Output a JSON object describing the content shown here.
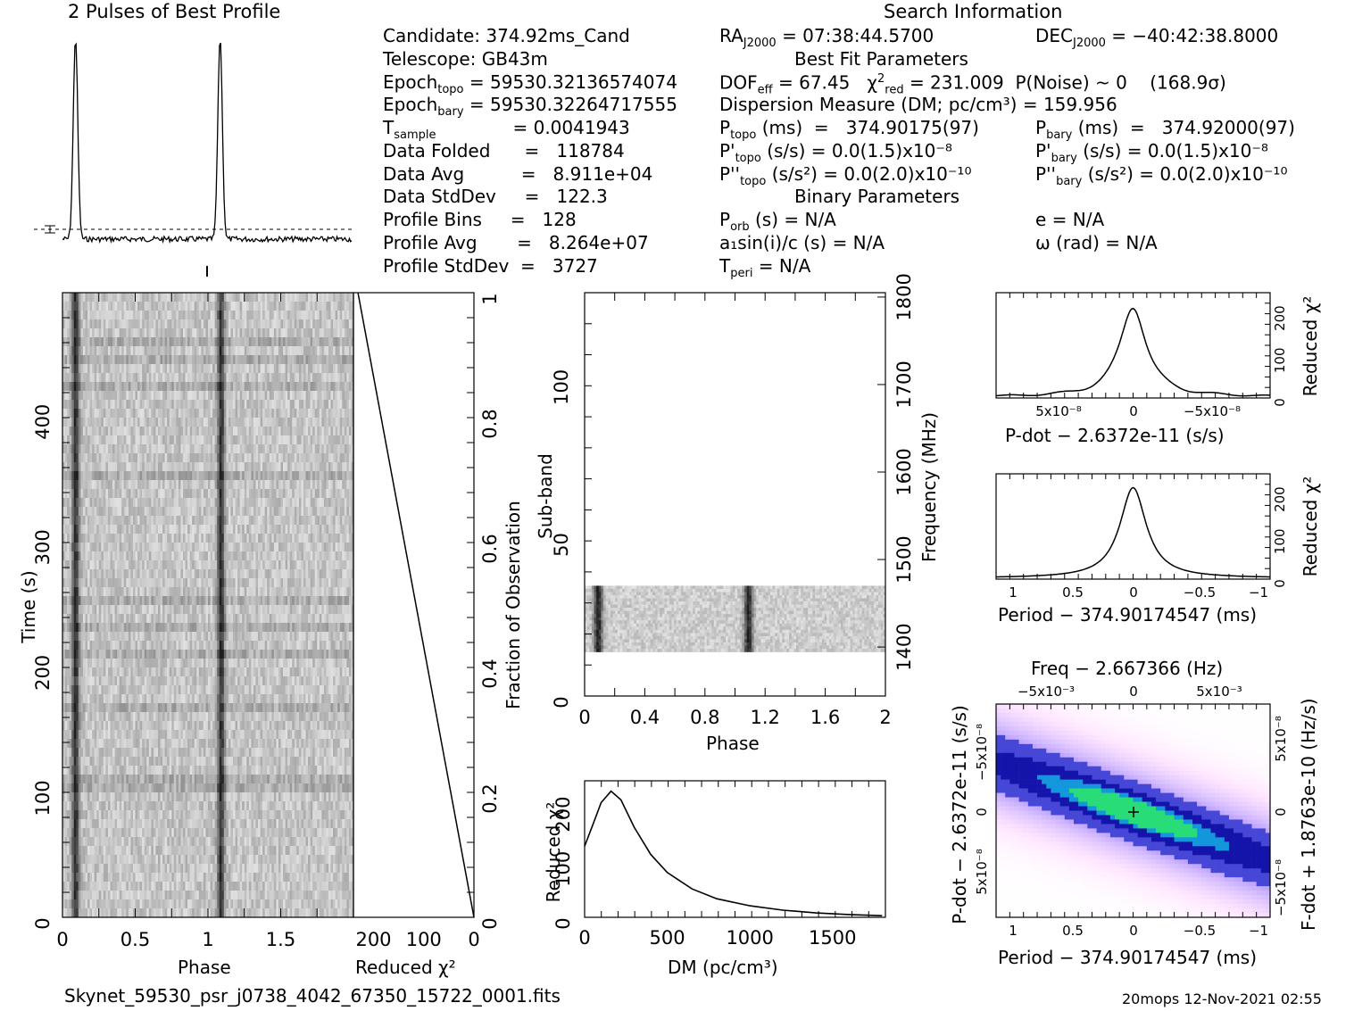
{
  "header": {
    "profile_title": "2 Pulses of Best Profile",
    "search_title": "Search Information",
    "footer_file": "Skynet_59530_psr_j0738_4042_67350_15722_0001.fits",
    "footer_stamp": "20mops 12-Nov-2021 02:55"
  },
  "info": {
    "candidate": "Candidate:  374.92ms_Cand",
    "telescope": "Telescope:  GB43m",
    "epoch_topo": "= 59530.32136574074",
    "epoch_bary": "= 59530.32264717555",
    "tsample": "=   0.0041943",
    "data_folded": "Data Folded      =   118784",
    "data_avg": "Data Avg          =   8.911e+04",
    "data_std": "Data StdDev     =   122.3",
    "profile_bins": "Profile Bins     =   128",
    "profile_avg": "Profile Avg       =   8.264e+07",
    "profile_std": "Profile StdDev  =   3727",
    "ra": "= 07:38:44.5700",
    "dec": "= −40:42:38.8000",
    "best_fit": "Best Fit Parameters",
    "dof": "= 67.45",
    "chi2": "= 231.009",
    "pnoise": "P(Noise) ~ 0    (168.9σ)",
    "dm": "Dispersion Measure (DM; pc/cm³) = 159.956",
    "ptopo": "(ms)  =   374.90175(97)",
    "pbary": "(ms)  =   374.92000(97)",
    "pdtopo": "(s/s) = 0.0(1.5)x10⁻⁸",
    "pdbary": "(s/s) = 0.0(1.5)x10⁻⁸",
    "pddtopo": "(s/s²) = 0.0(2.0)x10⁻¹⁰",
    "pddbary": "(s/s²) = 0.0(2.0)x10⁻¹⁰",
    "binary": "Binary Parameters",
    "porb": "(s) = N/A",
    "a1": "a₁sin(i)/c (s) = N/A",
    "tperi": "= N/A",
    "ecc": "e = N/A",
    "omega": "ω (rad) = N/A"
  },
  "labels": {
    "phase": "Phase",
    "time": "Time (s)",
    "reduced_chi2": "Reduced χ²",
    "fraction": "Fraction of Observation",
    "subband": "Sub-band",
    "frequency": "Frequency (MHz)",
    "dm_axis": "DM (pc/cm³)",
    "pdot_axis": "P-dot − 2.6372e-11 (s/s)",
    "period_axis": "Period − 374.90174547 (ms)",
    "freq_axis": "Freq − 2.667366 (Hz)",
    "pdot_y": "P-dot − 2.6372e-11 (s/s)",
    "fdot_y": "F-dot + 1.8763e-10 (Hz/s)"
  },
  "chart_data": [
    {
      "type": "line",
      "name": "profile",
      "title": "2 Pulses of Best Profile",
      "xlabel": "",
      "ylabel": "",
      "peaks_phase": [
        0.09,
        1.09
      ]
    },
    {
      "type": "heatmap",
      "name": "time_phase",
      "xlabel": "Phase",
      "ylabel": "Time (s)",
      "xlim": [
        0,
        2
      ],
      "ylim": [
        0,
        498
      ],
      "x_ticks": [
        "0",
        "0.5",
        "1",
        "1.5"
      ],
      "y_ticks": [
        "0",
        "100",
        "200",
        "300",
        "400"
      ]
    },
    {
      "type": "line",
      "name": "reduced_chi2_vs_time",
      "xlabel": "Reduced χ²",
      "ylabel": "Fraction of Observation",
      "xlim": [
        240,
        0
      ],
      "ylim": [
        0,
        1
      ],
      "x_ticks": [
        "200",
        "100",
        "0"
      ],
      "y_ticks": [
        "0",
        "0.2",
        "0.4",
        "0.6",
        "0.8",
        "1"
      ],
      "x": [
        231,
        0
      ],
      "y": [
        1,
        0
      ]
    },
    {
      "type": "heatmap",
      "name": "subband_phase",
      "xlabel": "Phase",
      "ylabel": "Sub-band",
      "y2label": "Frequency (MHz)",
      "xlim": [
        0,
        2
      ],
      "ylim": [
        0,
        128
      ],
      "x_ticks": [
        "0",
        "0.4",
        "0.8",
        "1.2",
        "1.6",
        "2"
      ],
      "y_ticks": [
        "0",
        "50",
        "100"
      ],
      "y2_ticks": [
        "1400",
        "1500",
        "1600",
        "1700",
        "1800"
      ],
      "band_subbands": [
        14,
        35
      ]
    },
    {
      "type": "line",
      "name": "dm_curve",
      "xlabel": "DM (pc/cm³)",
      "ylabel": "Reduced χ²",
      "xlim": [
        0,
        1820
      ],
      "ylim": [
        0,
        250
      ],
      "x_ticks": [
        "0",
        "500",
        "1000",
        "1500"
      ],
      "y_ticks": [
        "0",
        "100",
        "200"
      ],
      "x": [
        0,
        50,
        100,
        160,
        220,
        300,
        400,
        500,
        650,
        800,
        1000,
        1200,
        1400,
        1600,
        1800
      ],
      "y": [
        130,
        170,
        210,
        231,
        215,
        165,
        115,
        82,
        52,
        34,
        21,
        13,
        8,
        5,
        3
      ]
    },
    {
      "type": "line",
      "name": "pdot_curve",
      "xlabel": "P-dot − 2.6372e-11 (s/s)",
      "ylabel": "Reduced χ²",
      "x_ticks": [
        "5x10⁻⁸",
        "0",
        "−5x10⁻⁸"
      ],
      "y_ticks": [
        "0",
        "100",
        "200"
      ],
      "peak": 231
    },
    {
      "type": "line",
      "name": "period_curve",
      "xlabel": "Period − 374.90174547 (ms)",
      "ylabel": "Reduced χ²",
      "xlim": [
        1.1,
        -1.1
      ],
      "x_ticks": [
        "1",
        "0.5",
        "0",
        "−0.5",
        "−1"
      ],
      "y_ticks": [
        "0",
        "100",
        "200"
      ],
      "peak": 231
    },
    {
      "type": "heatmap",
      "name": "period_pdot",
      "xlabel": "Period − 374.90174547 (ms)",
      "ylabel": "P-dot − 2.6372e-11 (s/s)",
      "x2label": "Freq − 2.667366 (Hz)",
      "y2label": "F-dot + 1.8763e-10 (Hz/s)",
      "x_ticks": [
        "1",
        "0.5",
        "0",
        "−0.5",
        "−1"
      ],
      "x2_ticks": [
        "−5x10⁻³",
        "0",
        "5x10⁻³"
      ],
      "y_ticks": [
        "−5x10⁻⁸",
        "0",
        "5x10⁻⁸"
      ],
      "y2_ticks": [
        "5x10⁻⁸",
        "0",
        "−5x10⁻⁸"
      ]
    }
  ]
}
